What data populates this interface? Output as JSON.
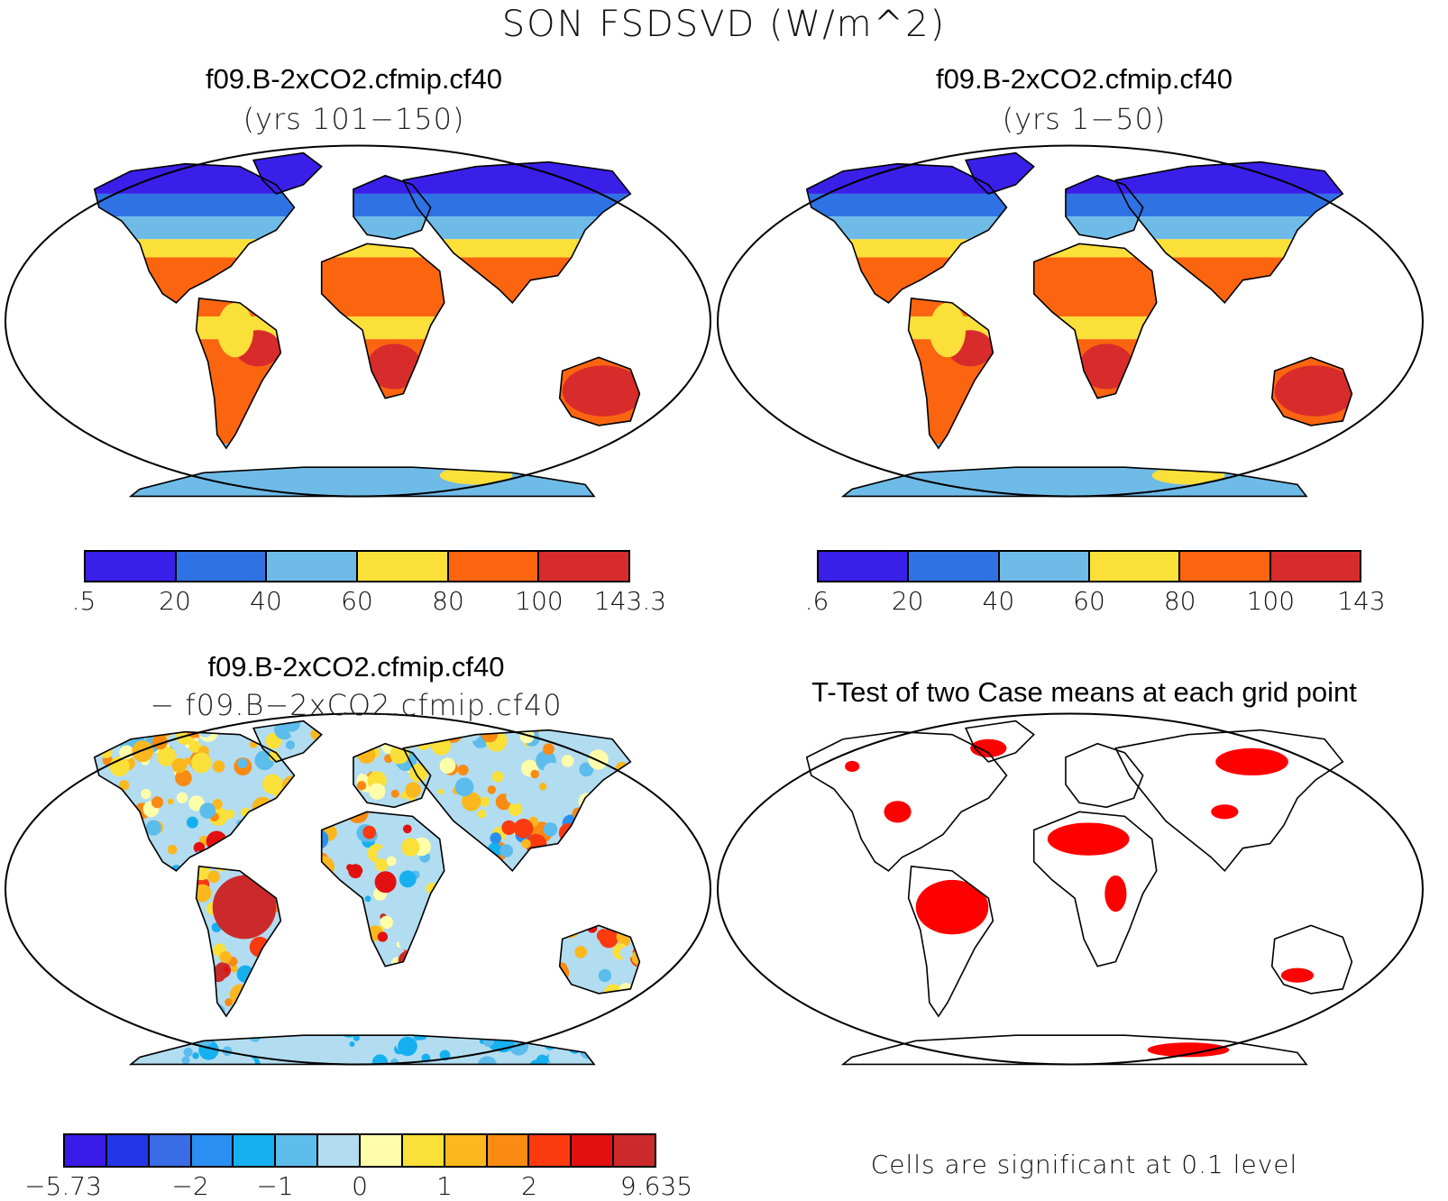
{
  "title": "SON FSDSVD (W/m^2)",
  "panels": {
    "top_left": {
      "title": "f09.B-2xCO2.cfmip.cf40",
      "subtitle": "(yrs 101−150)",
      "colorbar": {
        "colors": [
          "#3a1fe8",
          "#2f72e4",
          "#6fbbe8",
          "#fbe03a",
          "#fc6510",
          "#d82c2c"
        ],
        "labels": [
          ".5",
          "20",
          "40",
          "60",
          "80",
          "100",
          "143.3"
        ]
      }
    },
    "top_right": {
      "title": "f09.B-2xCO2.cfmip.cf40",
      "subtitle": "(yrs 1−50)",
      "colorbar": {
        "colors": [
          "#3a1fe8",
          "#2f72e4",
          "#6fbbe8",
          "#fbe03a",
          "#fc6510",
          "#d82c2c"
        ],
        "labels": [
          ".6",
          "20",
          "40",
          "60",
          "80",
          "100",
          "143"
        ]
      }
    },
    "bottom_left": {
      "title": "f09.B-2xCO2.cfmip.cf40",
      "subtitle": "− f09.B−2xCO2.cfmip.cf40",
      "colorbar": {
        "colors": [
          "#3a1ae6",
          "#2336e6",
          "#3a6ce6",
          "#2a8ff0",
          "#16b0f0",
          "#5cbcec",
          "#b2dcf0",
          "#fefeaa",
          "#fbe03a",
          "#fbb81e",
          "#f98a12",
          "#fb3a10",
          "#e21010",
          "#cc2a2a"
        ],
        "labels": [
          "−5.73",
          "−2",
          "−1",
          "0",
          "1",
          "2",
          "9.635"
        ]
      }
    },
    "bottom_right": {
      "title": "T-Test of two Case means at each grid point",
      "footnote": "Cells are significant at 0.1 level",
      "significant_color": "#ff0000"
    }
  }
}
